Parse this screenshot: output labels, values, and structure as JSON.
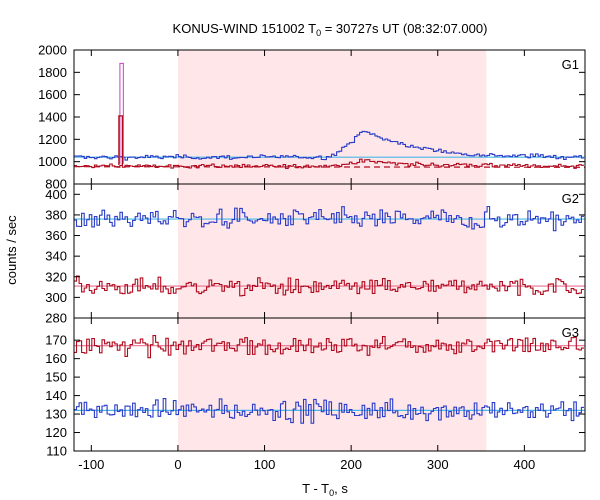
{
  "title": {
    "main": "KONUS-WIND 151002 T",
    "sub": "0",
    "rest": " = 30727s UT (08:32:07.000)"
  },
  "xlabel": {
    "main": "T - T",
    "sub": "0",
    "rest": ", s"
  },
  "ylabel": "counts / sec",
  "colors": {
    "blue": "#2a3cc8",
    "red": "#b00a1e",
    "cyan": "#49b8e8",
    "pink": "#e87090",
    "magenta": "#d050c8",
    "shade": "#ffe6e8"
  },
  "chart_data": {
    "type": "line",
    "xlim": [
      -120,
      470
    ],
    "xticks": [
      -100,
      0,
      100,
      200,
      300,
      400
    ],
    "shaded_interval": [
      0,
      356
    ],
    "panels": [
      {
        "label": "G1",
        "ylim": [
          800,
          2000
        ],
        "yticks": [
          800,
          1000,
          1200,
          1400,
          1600,
          1800,
          2000
        ],
        "blue_base": 1040,
        "blue_noise": 14,
        "red_base": 960,
        "red_noise": 12,
        "bump": {
          "center": 218,
          "rise": 18,
          "decay": 60,
          "blue_amp": 230,
          "red_amp": 45
        },
        "spike": {
          "x_start": -67,
          "x_end": -63,
          "magenta_peak": 1880,
          "red_peak": 1410
        },
        "fits": {
          "blue": 1040,
          "red_start": 955,
          "red_end": 950
        }
      },
      {
        "label": "G2",
        "ylim": [
          280,
          410
        ],
        "yticks": [
          280,
          300,
          320,
          340,
          360,
          380,
          400
        ],
        "blue_base": 376,
        "blue_noise": 7,
        "red_base": 310,
        "red_noise": 6,
        "fits": {
          "blue": 376,
          "red": 311
        }
      },
      {
        "label": "G3",
        "ylim": [
          110,
          182
        ],
        "yticks": [
          110,
          120,
          130,
          140,
          150,
          160,
          170
        ],
        "red_base": 167,
        "red_noise": 4,
        "blue_base": 132,
        "blue_noise": 4,
        "fits": {
          "red": 167,
          "blue": 132
        }
      }
    ],
    "bin_width_s": 2.944
  }
}
